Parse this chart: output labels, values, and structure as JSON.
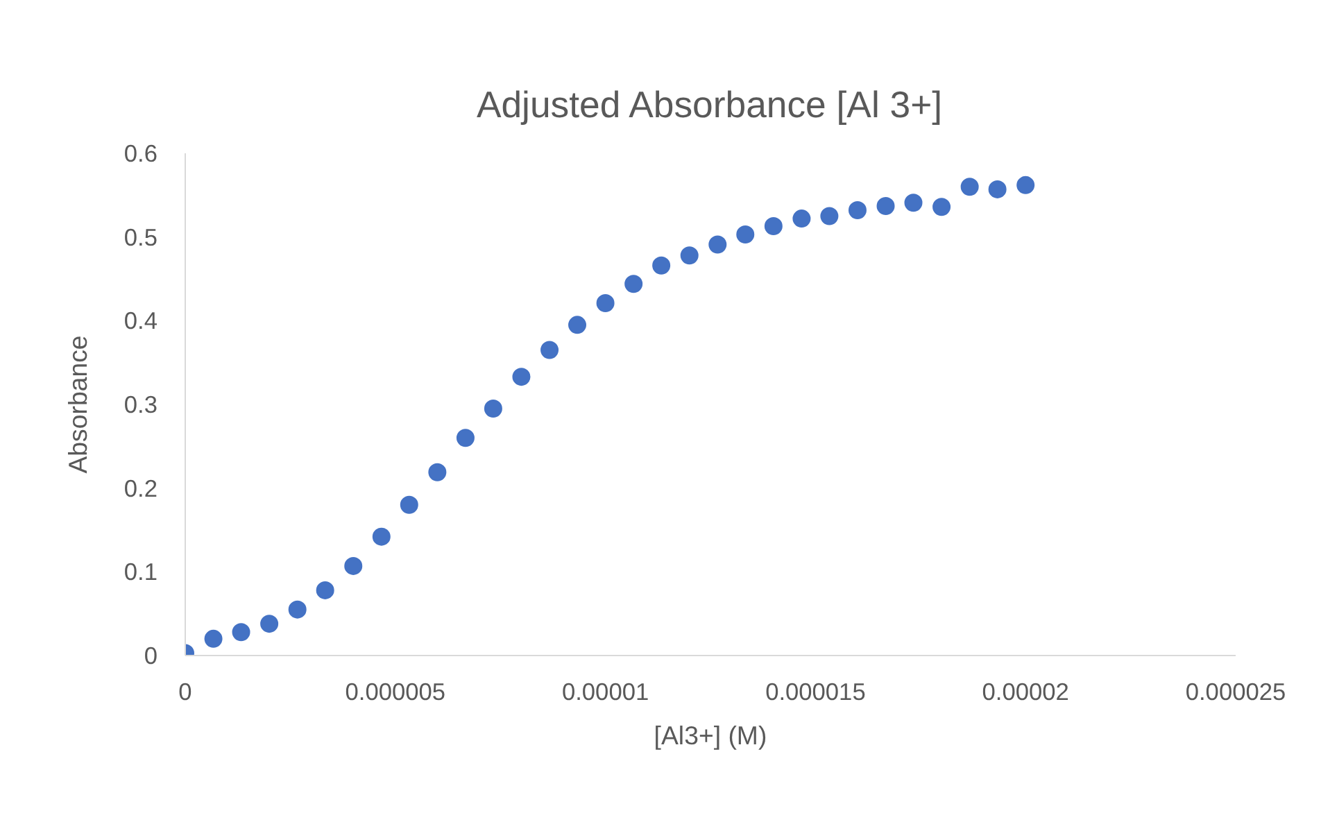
{
  "chart_data": {
    "type": "scatter",
    "title": "Adjusted Absorbance [Al 3+]",
    "xlabel": "[Al3+] (M)",
    "ylabel": "Absorbance",
    "x": [
      0,
      6.7e-07,
      1.33e-06,
      2e-06,
      2.67e-06,
      3.33e-06,
      4e-06,
      4.67e-06,
      5.33e-06,
      6e-06,
      6.67e-06,
      7.33e-06,
      8e-06,
      8.67e-06,
      9.33e-06,
      1e-05,
      1.067e-05,
      1.133e-05,
      1.2e-05,
      1.267e-05,
      1.333e-05,
      1.4e-05,
      1.467e-05,
      1.533e-05,
      1.6e-05,
      1.667e-05,
      1.733e-05,
      1.8e-05,
      1.867e-05,
      1.933e-05,
      2e-05
    ],
    "series": [
      {
        "color": "#4472c4",
        "values": [
          0.003,
          0.02,
          0.028,
          0.038,
          0.055,
          0.078,
          0.107,
          0.142,
          0.18,
          0.219,
          0.26,
          0.295,
          0.333,
          0.365,
          0.395,
          0.421,
          0.444,
          0.466,
          0.478,
          0.491,
          0.503,
          0.513,
          0.522,
          0.525,
          0.532,
          0.537,
          0.541,
          0.536,
          0.56,
          0.557,
          0.562
        ]
      }
    ],
    "xlim": [
      0,
      2.5e-05
    ],
    "ylim": [
      0,
      0.6
    ],
    "xticks": [
      0,
      {
        "value": 5e-06,
        "label": "0.000005"
      },
      {
        "value": 1e-05,
        "label": "0.00001"
      },
      {
        "value": 1.5e-05,
        "label": "0.000015"
      },
      {
        "value": 2e-05,
        "label": "0.00002"
      },
      {
        "value": 2.5e-05,
        "label": "0.000025"
      }
    ],
    "yticks": [
      0,
      0.1,
      0.2,
      0.3,
      0.4,
      0.5,
      0.6
    ],
    "marker": "circle",
    "grid": false
  }
}
